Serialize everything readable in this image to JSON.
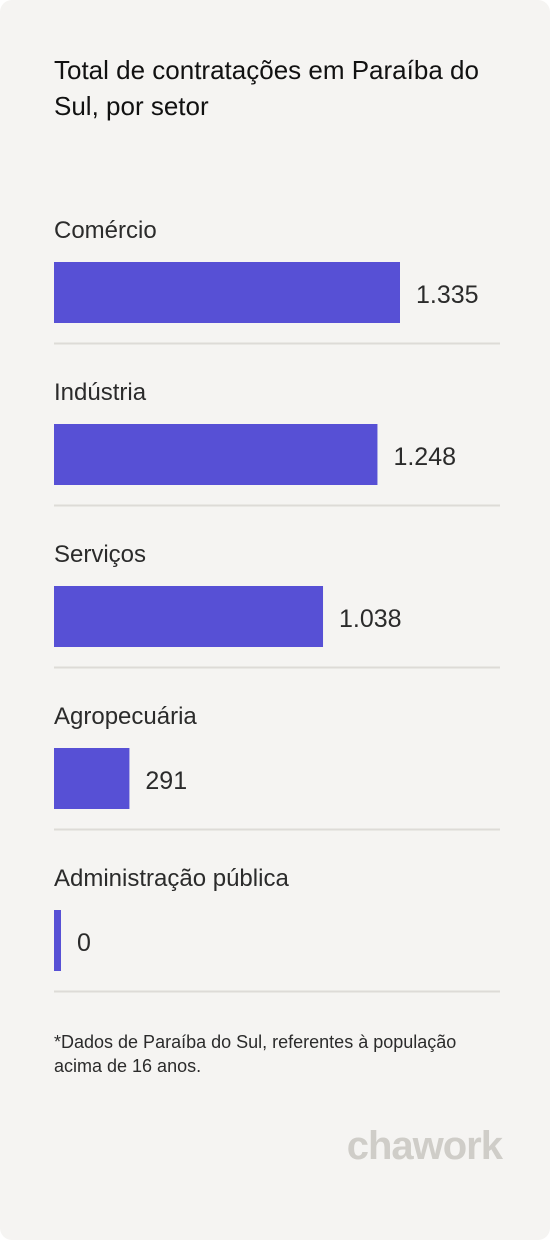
{
  "chart_data": {
    "type": "bar",
    "orientation": "horizontal",
    "title": "Total de contratações em Paraíba do Sul, por setor",
    "categories": [
      "Comércio",
      "Indústria",
      "Serviços",
      "Agropecuária",
      "Administração pública"
    ],
    "values": [
      1335,
      1248,
      1038,
      291,
      0
    ],
    "value_labels": [
      "1.335",
      "1.248",
      "1.038",
      "291",
      "0"
    ],
    "bar_color": "#5750d5",
    "separator_color": "#dddbd7",
    "grid": false,
    "legend": "none"
  },
  "footnote": "*Dados de Paraíba do Sul, referentes à população acima de 16 anos.",
  "brand": "chawork"
}
